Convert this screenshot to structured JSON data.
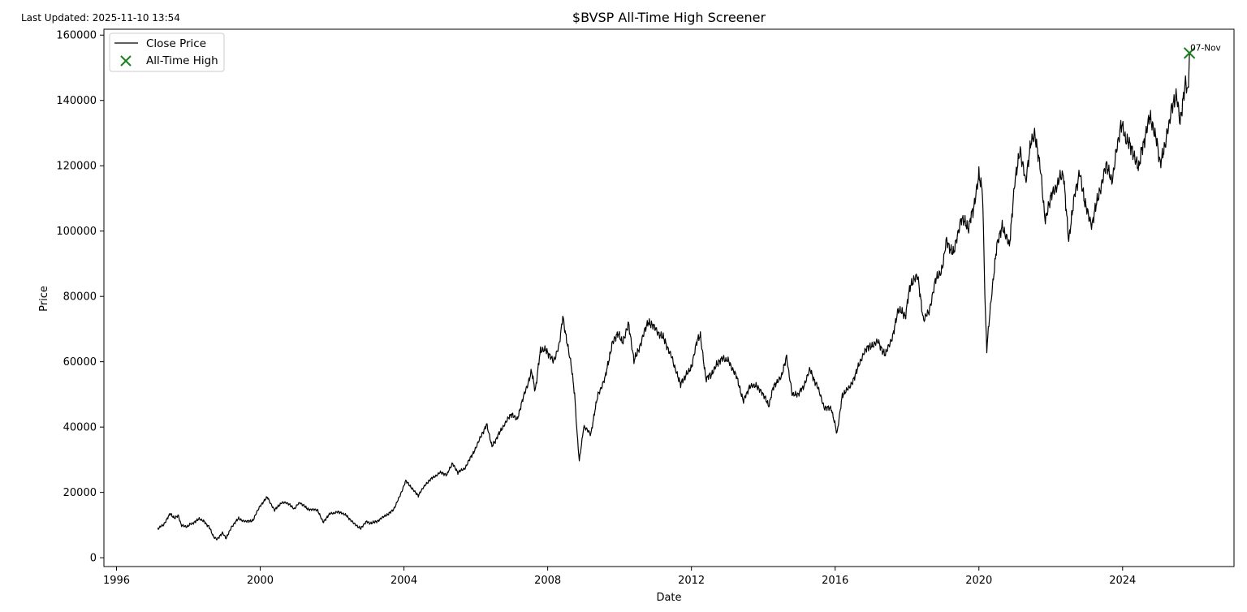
{
  "header": {
    "last_updated": "Last Updated: 2025-11-10 13:54"
  },
  "chart_data": {
    "type": "line",
    "title": "$BVSP All-Time High Screener",
    "xlabel": "Date",
    "ylabel": "Price",
    "xlim": [
      1995.65,
      2027.1
    ],
    "ylim": [
      -2700,
      161800
    ],
    "x_ticks": [
      1996,
      2000,
      2004,
      2008,
      2012,
      2016,
      2020,
      2024
    ],
    "x_tick_labels": [
      "1996",
      "2000",
      "2004",
      "2008",
      "2012",
      "2016",
      "2020",
      "2024"
    ],
    "y_ticks": [
      0,
      20000,
      40000,
      60000,
      80000,
      100000,
      120000,
      140000,
      160000
    ],
    "y_tick_labels": [
      "0",
      "20000",
      "40000",
      "60000",
      "80000",
      "100000",
      "120000",
      "140000",
      "160000"
    ],
    "grid": false,
    "legend_position": "top-left",
    "series": [
      {
        "name": "Close Price",
        "color": "#000000",
        "points": [
          [
            1997.15,
            9000
          ],
          [
            1997.3,
            10000
          ],
          [
            1997.5,
            13500
          ],
          [
            1997.62,
            12000
          ],
          [
            1997.72,
            13000
          ],
          [
            1997.8,
            10000
          ],
          [
            1997.95,
            9500
          ],
          [
            1998.1,
            10500
          ],
          [
            1998.3,
            11800
          ],
          [
            1998.45,
            11000
          ],
          [
            1998.6,
            9000
          ],
          [
            1998.7,
            6500
          ],
          [
            1998.8,
            5500
          ],
          [
            1998.95,
            7500
          ],
          [
            1999.05,
            6000
          ],
          [
            1999.2,
            9500
          ],
          [
            1999.4,
            12000
          ],
          [
            1999.6,
            11000
          ],
          [
            1999.8,
            11500
          ],
          [
            2000.0,
            16000
          ],
          [
            2000.2,
            18500
          ],
          [
            2000.4,
            14500
          ],
          [
            2000.6,
            17000
          ],
          [
            2000.8,
            16500
          ],
          [
            2000.95,
            15000
          ],
          [
            2001.1,
            17000
          ],
          [
            2001.3,
            15000
          ],
          [
            2001.6,
            14500
          ],
          [
            2001.75,
            11000
          ],
          [
            2001.95,
            13500
          ],
          [
            2002.15,
            14000
          ],
          [
            2002.4,
            13000
          ],
          [
            2002.6,
            10500
          ],
          [
            2002.8,
            9000
          ],
          [
            2002.95,
            11000
          ],
          [
            2003.1,
            10500
          ],
          [
            2003.3,
            11500
          ],
          [
            2003.5,
            13000
          ],
          [
            2003.7,
            14500
          ],
          [
            2003.85,
            18000
          ],
          [
            2004.05,
            23500
          ],
          [
            2004.25,
            21000
          ],
          [
            2004.4,
            19000
          ],
          [
            2004.6,
            22500
          ],
          [
            2004.8,
            24500
          ],
          [
            2005.0,
            26000
          ],
          [
            2005.2,
            25500
          ],
          [
            2005.35,
            29000
          ],
          [
            2005.5,
            26000
          ],
          [
            2005.7,
            27500
          ],
          [
            2005.9,
            31500
          ],
          [
            2006.1,
            36000
          ],
          [
            2006.3,
            41000
          ],
          [
            2006.45,
            34000
          ],
          [
            2006.6,
            37000
          ],
          [
            2006.8,
            41000
          ],
          [
            2007.0,
            44000
          ],
          [
            2007.15,
            42500
          ],
          [
            2007.35,
            50000
          ],
          [
            2007.55,
            57000
          ],
          [
            2007.65,
            51000
          ],
          [
            2007.8,
            63500
          ],
          [
            2007.95,
            64000
          ],
          [
            2008.15,
            60000
          ],
          [
            2008.3,
            64000
          ],
          [
            2008.42,
            73500
          ],
          [
            2008.5,
            68000
          ],
          [
            2008.65,
            59000
          ],
          [
            2008.75,
            50000
          ],
          [
            2008.82,
            38000
          ],
          [
            2008.88,
            29500
          ],
          [
            2009.0,
            40000
          ],
          [
            2009.2,
            38000
          ],
          [
            2009.4,
            50000
          ],
          [
            2009.6,
            55000
          ],
          [
            2009.8,
            66000
          ],
          [
            2009.95,
            68500
          ],
          [
            2010.1,
            66000
          ],
          [
            2010.25,
            71500
          ],
          [
            2010.4,
            60000
          ],
          [
            2010.6,
            66000
          ],
          [
            2010.8,
            72500
          ],
          [
            2011.0,
            70000
          ],
          [
            2011.2,
            67500
          ],
          [
            2011.4,
            63000
          ],
          [
            2011.55,
            58000
          ],
          [
            2011.7,
            53000
          ],
          [
            2011.85,
            56000
          ],
          [
            2012.0,
            58000
          ],
          [
            2012.15,
            66000
          ],
          [
            2012.25,
            68000
          ],
          [
            2012.4,
            55000
          ],
          [
            2012.55,
            56000
          ],
          [
            2012.7,
            59500
          ],
          [
            2012.9,
            61000
          ],
          [
            2013.05,
            60000
          ],
          [
            2013.25,
            55500
          ],
          [
            2013.45,
            48000
          ],
          [
            2013.6,
            52000
          ],
          [
            2013.8,
            53000
          ],
          [
            2013.95,
            51000
          ],
          [
            2014.15,
            46500
          ],
          [
            2014.3,
            53000
          ],
          [
            2014.5,
            55000
          ],
          [
            2014.65,
            61500
          ],
          [
            2014.8,
            50000
          ],
          [
            2014.95,
            50000
          ],
          [
            2015.1,
            52000
          ],
          [
            2015.3,
            57500
          ],
          [
            2015.5,
            52500
          ],
          [
            2015.7,
            46000
          ],
          [
            2015.9,
            45500
          ],
          [
            2016.05,
            38000
          ],
          [
            2016.2,
            50000
          ],
          [
            2016.4,
            52000
          ],
          [
            2016.6,
            57000
          ],
          [
            2016.8,
            63000
          ],
          [
            2017.0,
            65000
          ],
          [
            2017.2,
            66000
          ],
          [
            2017.4,
            62000
          ],
          [
            2017.6,
            68000
          ],
          [
            2017.75,
            76000
          ],
          [
            2017.95,
            74000
          ],
          [
            2018.1,
            84000
          ],
          [
            2018.3,
            86000
          ],
          [
            2018.45,
            73000
          ],
          [
            2018.6,
            75000
          ],
          [
            2018.8,
            85000
          ],
          [
            2018.95,
            87000
          ],
          [
            2019.1,
            97000
          ],
          [
            2019.3,
            93000
          ],
          [
            2019.5,
            104000
          ],
          [
            2019.7,
            101000
          ],
          [
            2019.85,
            107000
          ],
          [
            2020.0,
            118000
          ],
          [
            2020.1,
            112000
          ],
          [
            2020.18,
            75000
          ],
          [
            2020.22,
            64000
          ],
          [
            2020.35,
            80000
          ],
          [
            2020.5,
            96000
          ],
          [
            2020.65,
            102000
          ],
          [
            2020.85,
            95000
          ],
          [
            2021.0,
            115000
          ],
          [
            2021.15,
            125000
          ],
          [
            2021.3,
            115000
          ],
          [
            2021.45,
            128000
          ],
          [
            2021.55,
            130000
          ],
          [
            2021.7,
            120000
          ],
          [
            2021.85,
            103000
          ],
          [
            2022.0,
            110000
          ],
          [
            2022.2,
            115000
          ],
          [
            2022.35,
            118000
          ],
          [
            2022.5,
            97000
          ],
          [
            2022.65,
            110000
          ],
          [
            2022.8,
            118000
          ],
          [
            2022.95,
            108000
          ],
          [
            2023.15,
            102000
          ],
          [
            2023.35,
            112000
          ],
          [
            2023.55,
            120000
          ],
          [
            2023.7,
            115000
          ],
          [
            2023.85,
            126000
          ],
          [
            2023.95,
            133000
          ],
          [
            2024.1,
            128000
          ],
          [
            2024.3,
            124000
          ],
          [
            2024.45,
            120000
          ],
          [
            2024.6,
            128000
          ],
          [
            2024.75,
            136000
          ],
          [
            2024.9,
            130000
          ],
          [
            2025.05,
            121000
          ],
          [
            2025.2,
            127000
          ],
          [
            2025.35,
            137000
          ],
          [
            2025.5,
            141000
          ],
          [
            2025.6,
            133000
          ],
          [
            2025.75,
            146000
          ],
          [
            2025.82,
            143000
          ],
          [
            2025.86,
            154500
          ]
        ]
      }
    ],
    "markers": [
      {
        "name": "All-Time High",
        "color": "#1a8020",
        "x": 2025.86,
        "y": 154500,
        "label": "07-Nov"
      }
    ]
  }
}
